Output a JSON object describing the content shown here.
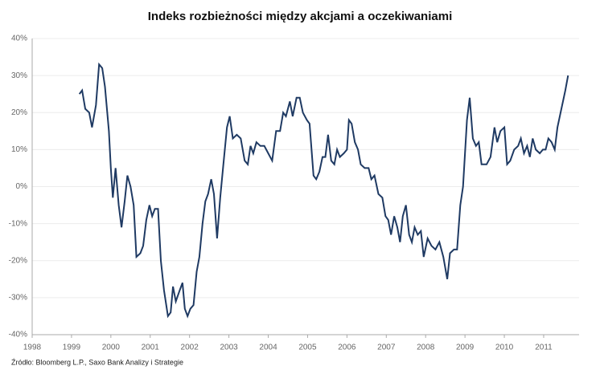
{
  "chart_data": {
    "type": "line",
    "title": "Indeks rozbieżności między akcjami a oczekiwaniami",
    "source": "Źródło: Bloomberg L.P., Saxo Bank Analizy i Strategie",
    "color": "#1f3a63",
    "grid": true,
    "xlim": [
      1998,
      2011.9
    ],
    "xticks": [
      1998,
      1999,
      2000,
      2001,
      2002,
      2003,
      2004,
      2005,
      2006,
      2007,
      2008,
      2009,
      2010,
      2011
    ],
    "ylim": [
      -40,
      40
    ],
    "yticks": [
      {
        "value": -40,
        "label": "-40%"
      },
      {
        "value": -30,
        "label": "-30%"
      },
      {
        "value": -20,
        "label": "-20%"
      },
      {
        "value": -10,
        "label": "-10%"
      },
      {
        "value": 0,
        "label": "0%"
      },
      {
        "value": 10,
        "label": "10%"
      },
      {
        "value": 20,
        "label": "20%"
      },
      {
        "value": 30,
        "label": "30%"
      },
      {
        "value": 40,
        "label": "40%"
      }
    ],
    "x": [
      1999.2,
      1999.27,
      1999.35,
      1999.45,
      1999.52,
      1999.62,
      1999.7,
      1999.78,
      1999.85,
      1999.95,
      2000.0,
      2000.05,
      2000.12,
      2000.2,
      2000.27,
      2000.35,
      2000.42,
      2000.5,
      2000.58,
      2000.65,
      2000.75,
      2000.82,
      2000.9,
      2000.98,
      2001.05,
      2001.12,
      2001.2,
      2001.27,
      2001.35,
      2001.45,
      2001.52,
      2001.58,
      2001.65,
      2001.75,
      2001.82,
      2001.88,
      2001.95,
      2002.02,
      2002.1,
      2002.18,
      2002.25,
      2002.33,
      2002.4,
      2002.47,
      2002.55,
      2002.62,
      2002.7,
      2002.78,
      2002.85,
      2002.95,
      2003.02,
      2003.1,
      2003.2,
      2003.3,
      2003.4,
      2003.48,
      2003.55,
      2003.62,
      2003.7,
      2003.8,
      2003.9,
      2004.0,
      2004.1,
      2004.2,
      2004.3,
      2004.38,
      2004.45,
      2004.55,
      2004.62,
      2004.72,
      2004.8,
      2004.88,
      2004.98,
      2005.05,
      2005.15,
      2005.22,
      2005.3,
      2005.38,
      2005.45,
      2005.52,
      2005.6,
      2005.68,
      2005.75,
      2005.82,
      2005.92,
      2006.0,
      2006.05,
      2006.12,
      2006.2,
      2006.28,
      2006.35,
      2006.45,
      2006.55,
      2006.62,
      2006.7,
      2006.8,
      2006.9,
      2006.98,
      2007.05,
      2007.12,
      2007.2,
      2007.28,
      2007.35,
      2007.42,
      2007.5,
      2007.58,
      2007.65,
      2007.72,
      2007.8,
      2007.88,
      2007.95,
      2008.05,
      2008.15,
      2008.25,
      2008.35,
      2008.45,
      2008.55,
      2008.62,
      2008.72,
      2008.8,
      2008.88,
      2008.95,
      2009.05,
      2009.12,
      2009.2,
      2009.28,
      2009.35,
      2009.42,
      2009.55,
      2009.65,
      2009.75,
      2009.82,
      2009.9,
      2010.0,
      2010.07,
      2010.15,
      2010.25,
      2010.35,
      2010.42,
      2010.5,
      2010.58,
      2010.65,
      2010.72,
      2010.8,
      2010.9,
      2010.98,
      2011.05,
      2011.12,
      2011.2,
      2011.28,
      2011.35,
      2011.45,
      2011.55,
      2011.62
    ],
    "values": [
      25,
      26,
      21,
      20,
      16,
      22,
      33,
      32,
      27,
      15,
      5,
      -3,
      5,
      -5,
      -11,
      -4,
      3,
      0,
      -5,
      -19,
      -18,
      -16,
      -9,
      -5,
      -8,
      -6,
      -6,
      -20,
      -28,
      -35,
      -34,
      -27,
      -31,
      -28,
      -26,
      -33,
      -35,
      -33,
      -32,
      -23,
      -19,
      -10,
      -4,
      -2,
      2,
      -2,
      -14,
      -3,
      5,
      16,
      19,
      13,
      14,
      13,
      7,
      6,
      11,
      9,
      12,
      11,
      11,
      9,
      7,
      15,
      15,
      20,
      19,
      23,
      19,
      24,
      24,
      20,
      18,
      17,
      3,
      2,
      4,
      8,
      8,
      14,
      7,
      6,
      10,
      8,
      9,
      10,
      18,
      17,
      12,
      10,
      6,
      5,
      5,
      2,
      3,
      -2,
      -3,
      -8,
      -9,
      -13,
      -8,
      -11,
      -15,
      -8,
      -5,
      -13,
      -15,
      -11,
      -13,
      -12,
      -19,
      -14,
      -16,
      -17,
      -15,
      -19,
      -25,
      -18,
      -17,
      -17,
      -5,
      0,
      18,
      24,
      13,
      11,
      12,
      6,
      6,
      8,
      16,
      12,
      15,
      16,
      6,
      7,
      10,
      11,
      13,
      9,
      11,
      8,
      13,
      10,
      9,
      10,
      10,
      13,
      12,
      10,
      16,
      21,
      26,
      30
    ]
  }
}
